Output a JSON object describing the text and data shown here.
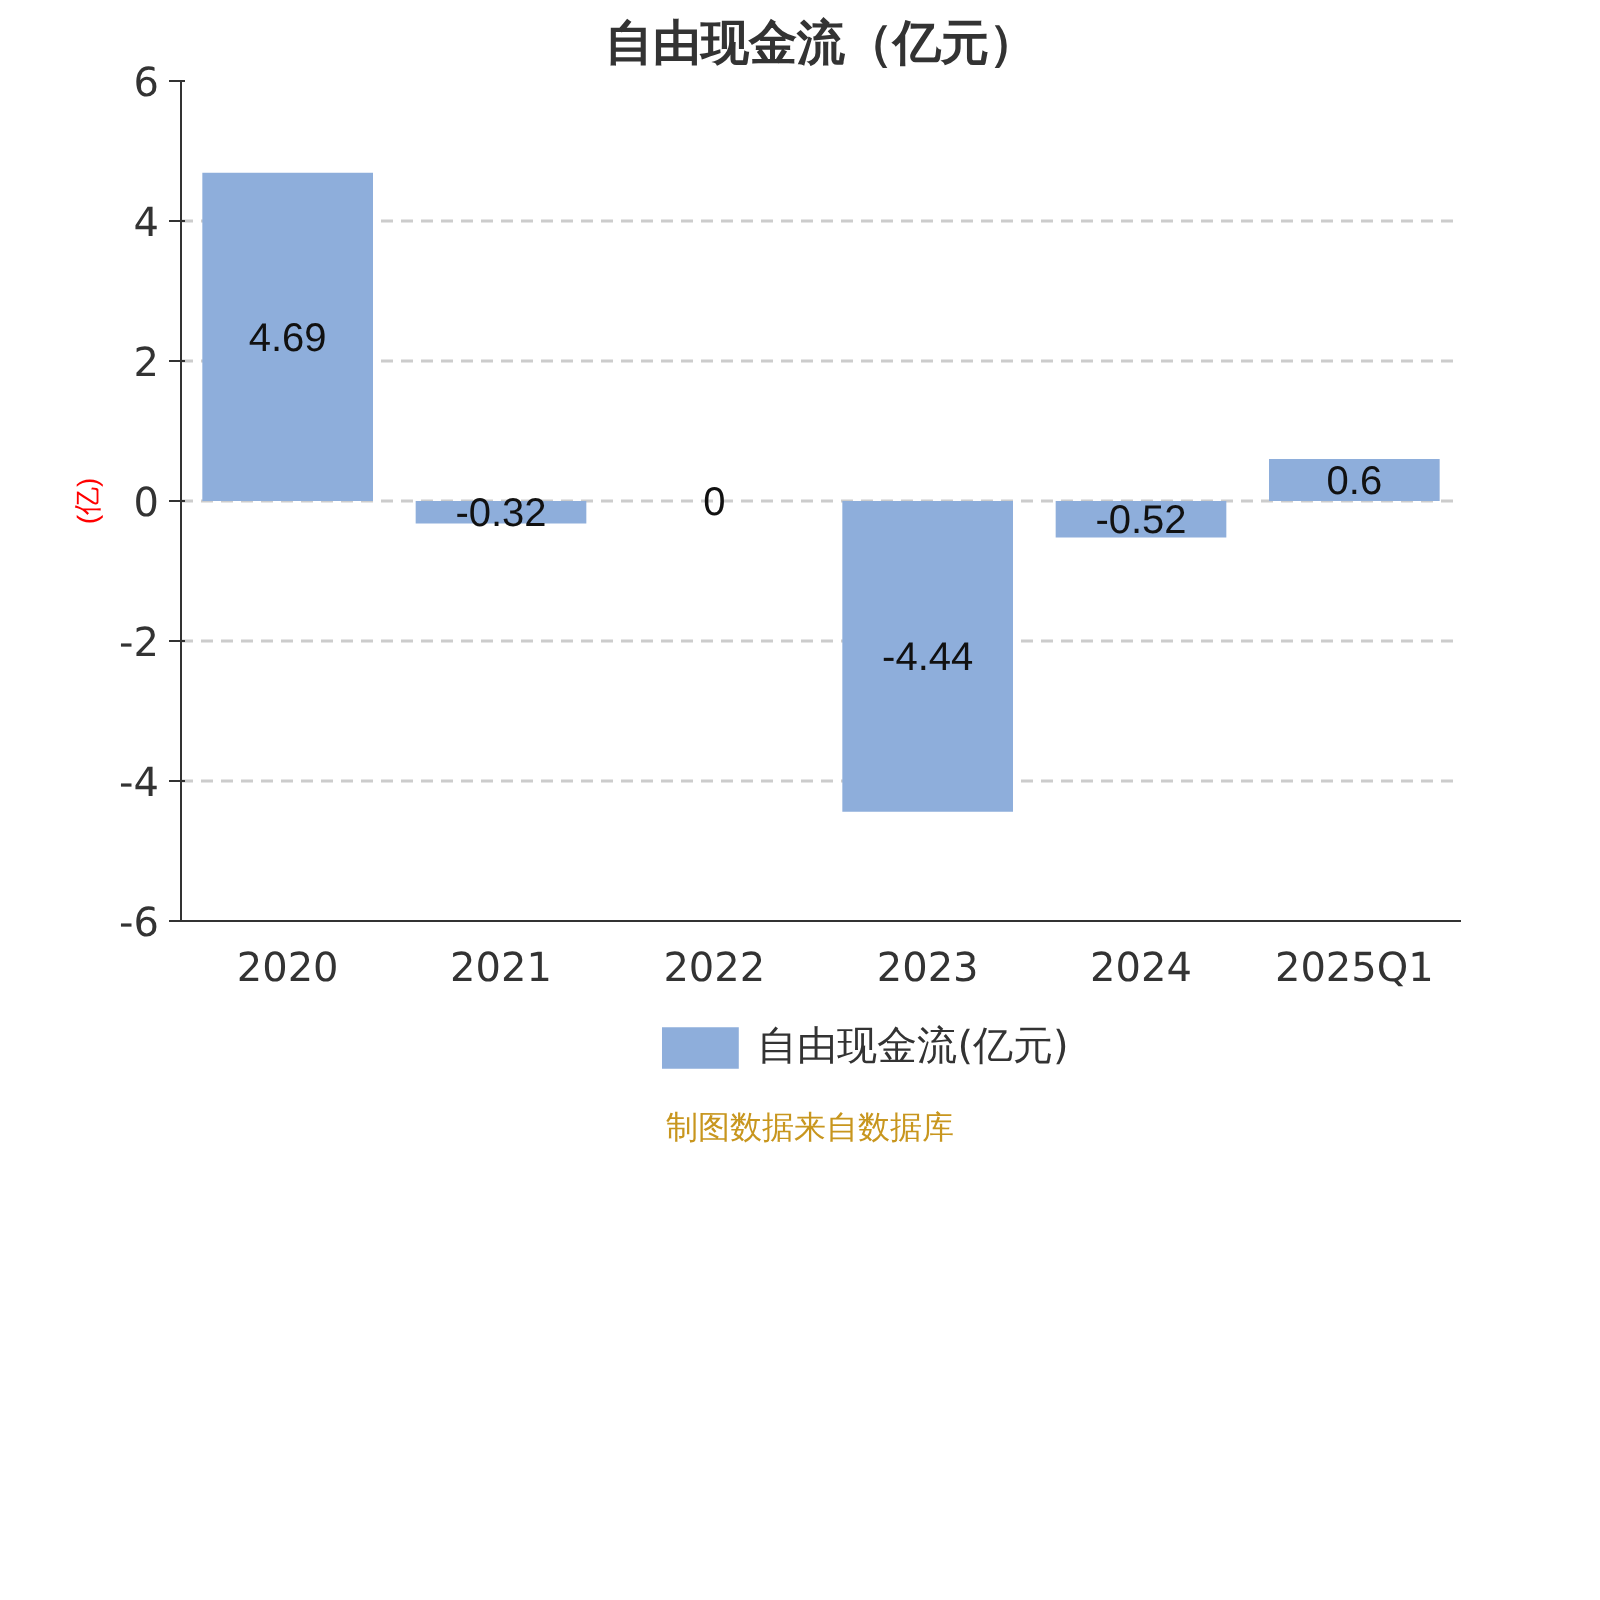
{
  "chart_data": {
    "type": "bar",
    "title": "自由现金流（亿元）",
    "ylabel": "(亿)",
    "categories": [
      "2020",
      "2021",
      "2022",
      "2023",
      "2024",
      "2025Q1"
    ],
    "series": [
      {
        "name": "自由现金流(亿元)",
        "color": "#8eaedb",
        "values": [
          4.69,
          -0.32,
          0,
          -4.44,
          -0.52,
          0.6
        ]
      }
    ],
    "ylim": [
      -6,
      6
    ],
    "yticks": [
      -6,
      -4,
      -2,
      0,
      2,
      4,
      6
    ],
    "grid": "y",
    "legend": "bottom",
    "data_labels": true,
    "annotations": [
      "制图数据来自数据库"
    ]
  }
}
